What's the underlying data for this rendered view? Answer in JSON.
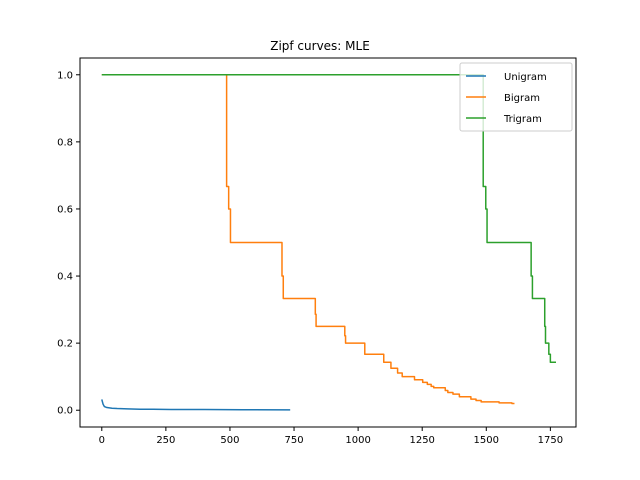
{
  "chart_data": {
    "type": "line",
    "title": "Zipf curves: MLE",
    "xlabel": "",
    "ylabel": "",
    "xlim": [
      -85,
      1850
    ],
    "ylim": [
      -0.05,
      1.05
    ],
    "xticks": [
      0,
      250,
      500,
      750,
      1000,
      1250,
      1500,
      1750
    ],
    "yticks": [
      0.0,
      0.2,
      0.4,
      0.6,
      0.8,
      1.0
    ],
    "xtick_labels": [
      "0",
      "250",
      "500",
      "750",
      "1000",
      "1250",
      "1500",
      "1750"
    ],
    "ytick_labels": [
      "0.0",
      "0.2",
      "0.4",
      "0.6",
      "0.8",
      "1.0"
    ],
    "grid": false,
    "legend": "top-right",
    "series": [
      {
        "name": "Unigram",
        "color": "#1f77b4",
        "x": [
          0,
          5,
          10,
          20,
          40,
          60,
          100,
          150,
          200,
          270,
          400,
          550,
          735
        ],
        "y": [
          0.032,
          0.018,
          0.011,
          0.008,
          0.006,
          0.005,
          0.004,
          0.003,
          0.003,
          0.002,
          0.002,
          0.0015,
          0.0012
        ]
      },
      {
        "name": "Bigram",
        "color": "#ff7f0e",
        "x": [
          0,
          487,
          487,
          495,
          495,
          502,
          502,
          703,
          703,
          708,
          708,
          833,
          833,
          836,
          836,
          948,
          948,
          951,
          951,
          1026,
          1026,
          1100,
          1100,
          1128,
          1128,
          1154,
          1154,
          1172,
          1172,
          1220,
          1220,
          1252,
          1252,
          1270,
          1270,
          1285,
          1285,
          1295,
          1295,
          1340,
          1340,
          1350,
          1350,
          1370,
          1370,
          1395,
          1395,
          1440,
          1440,
          1460,
          1460,
          1480,
          1480,
          1550,
          1550,
          1600,
          1600,
          1610
        ],
        "y": [
          1.0,
          1.0,
          0.667,
          0.667,
          0.6,
          0.6,
          0.5,
          0.5,
          0.4,
          0.4,
          0.333,
          0.333,
          0.286,
          0.286,
          0.25,
          0.25,
          0.222,
          0.222,
          0.2,
          0.2,
          0.167,
          0.167,
          0.143,
          0.143,
          0.125,
          0.125,
          0.111,
          0.111,
          0.1,
          0.1,
          0.091,
          0.091,
          0.083,
          0.083,
          0.077,
          0.077,
          0.071,
          0.071,
          0.067,
          0.067,
          0.059,
          0.059,
          0.053,
          0.053,
          0.048,
          0.048,
          0.04,
          0.04,
          0.033,
          0.033,
          0.029,
          0.029,
          0.025,
          0.025,
          0.022,
          0.022,
          0.02,
          0.02
        ]
      },
      {
        "name": "Trigram",
        "color": "#2ca02c",
        "x": [
          0,
          1488,
          1488,
          1498,
          1498,
          1503,
          1503,
          1675,
          1675,
          1680,
          1680,
          1728,
          1728,
          1731,
          1731,
          1744,
          1744,
          1750,
          1750,
          1768,
          1768,
          1772
        ],
        "y": [
          1.0,
          1.0,
          0.667,
          0.667,
          0.6,
          0.6,
          0.5,
          0.5,
          0.4,
          0.4,
          0.333,
          0.333,
          0.25,
          0.25,
          0.2,
          0.2,
          0.167,
          0.167,
          0.143,
          0.143,
          0.143,
          0.143
        ]
      }
    ]
  }
}
